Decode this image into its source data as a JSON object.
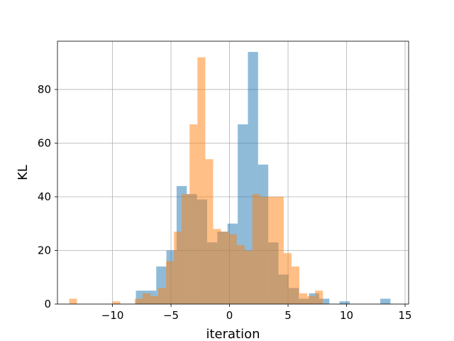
{
  "chart_data": {
    "type": "histogram",
    "title": "",
    "xlabel": "iteration",
    "ylabel": "KL",
    "xlim": [
      -14.7,
      15.3
    ],
    "ylim": [
      0,
      98
    ],
    "xticks": [
      -10,
      -5,
      0,
      5,
      10,
      15
    ],
    "yticks": [
      0,
      20,
      40,
      60,
      80
    ],
    "grid": true,
    "legend": "none",
    "series": [
      {
        "color": "#1f77b4",
        "alpha": 0.5,
        "bin_width": 0.87,
        "bins": [
          {
            "x0": -8.0,
            "x1": -7.13,
            "count": 5
          },
          {
            "x0": -7.13,
            "x1": -6.26,
            "count": 5
          },
          {
            "x0": -6.26,
            "x1": -5.39,
            "count": 14
          },
          {
            "x0": -5.39,
            "x1": -4.52,
            "count": 20
          },
          {
            "x0": -4.52,
            "x1": -3.65,
            "count": 44
          },
          {
            "x0": -3.65,
            "x1": -2.78,
            "count": 41
          },
          {
            "x0": -2.78,
            "x1": -1.91,
            "count": 39
          },
          {
            "x0": -1.91,
            "x1": -1.04,
            "count": 23
          },
          {
            "x0": -1.04,
            "x1": -0.17,
            "count": 27
          },
          {
            "x0": -0.17,
            "x1": 0.7,
            "count": 30
          },
          {
            "x0": 0.7,
            "x1": 1.57,
            "count": 67
          },
          {
            "x0": 1.57,
            "x1": 2.44,
            "count": 94
          },
          {
            "x0": 2.44,
            "x1": 3.31,
            "count": 52
          },
          {
            "x0": 3.31,
            "x1": 4.18,
            "count": 23
          },
          {
            "x0": 4.18,
            "x1": 5.05,
            "count": 11
          },
          {
            "x0": 5.05,
            "x1": 5.92,
            "count": 6
          },
          {
            "x0": 5.92,
            "x1": 6.79,
            "count": 2
          },
          {
            "x0": 6.79,
            "x1": 7.66,
            "count": 4
          },
          {
            "x0": 7.66,
            "x1": 8.53,
            "count": 2
          },
          {
            "x0": 9.4,
            "x1": 10.27,
            "count": 1
          },
          {
            "x0": 12.88,
            "x1": 13.75,
            "count": 2
          }
        ]
      },
      {
        "color": "#ff7f0e",
        "alpha": 0.5,
        "bin_width": 0.67,
        "bins": [
          {
            "x0": -13.7,
            "x1": -13.03,
            "count": 2
          },
          {
            "x0": -10.0,
            "x1": -9.33,
            "count": 1
          },
          {
            "x0": -8.1,
            "x1": -7.43,
            "count": 2
          },
          {
            "x0": -7.43,
            "x1": -6.76,
            "count": 4
          },
          {
            "x0": -6.76,
            "x1": -6.09,
            "count": 3
          },
          {
            "x0": -6.09,
            "x1": -5.42,
            "count": 6
          },
          {
            "x0": -5.42,
            "x1": -4.75,
            "count": 16
          },
          {
            "x0": -4.75,
            "x1": -4.08,
            "count": 27
          },
          {
            "x0": -4.08,
            "x1": -3.41,
            "count": 41
          },
          {
            "x0": -3.41,
            "x1": -2.74,
            "count": 67
          },
          {
            "x0": -2.74,
            "x1": -2.07,
            "count": 92
          },
          {
            "x0": -2.07,
            "x1": -1.4,
            "count": 54
          },
          {
            "x0": -1.4,
            "x1": -0.73,
            "count": 28
          },
          {
            "x0": -0.73,
            "x1": -0.06,
            "count": 27
          },
          {
            "x0": -0.06,
            "x1": 0.61,
            "count": 26
          },
          {
            "x0": 0.61,
            "x1": 1.28,
            "count": 22
          },
          {
            "x0": 1.28,
            "x1": 1.95,
            "count": 20
          },
          {
            "x0": 1.95,
            "x1": 2.62,
            "count": 41
          },
          {
            "x0": 2.62,
            "x1": 3.29,
            "count": 40
          },
          {
            "x0": 3.29,
            "x1": 3.96,
            "count": 40
          },
          {
            "x0": 3.96,
            "x1": 4.63,
            "count": 40
          },
          {
            "x0": 4.63,
            "x1": 5.3,
            "count": 19
          },
          {
            "x0": 5.3,
            "x1": 5.97,
            "count": 14
          },
          {
            "x0": 5.97,
            "x1": 6.64,
            "count": 4
          },
          {
            "x0": 6.64,
            "x1": 7.31,
            "count": 3
          },
          {
            "x0": 7.31,
            "x1": 7.98,
            "count": 5
          }
        ]
      }
    ]
  }
}
